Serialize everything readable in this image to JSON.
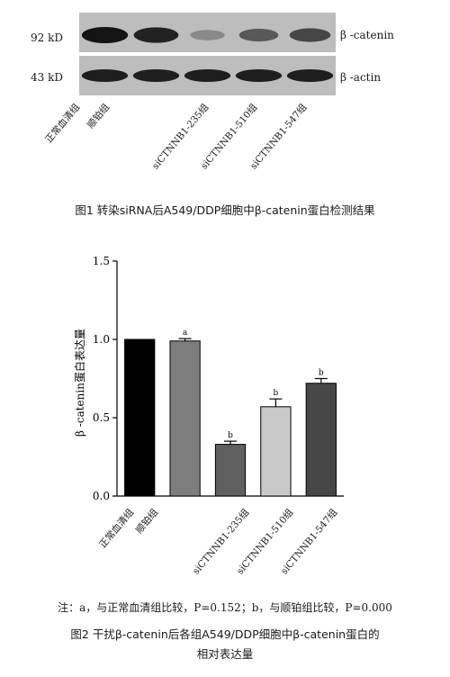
{
  "figure1": {
    "marker_top": "92 kD",
    "marker_bottom": "43 kD",
    "label_top": "β -catenin",
    "label_bottom": "β -actin",
    "lanes": [
      "正常血清组",
      "顺铂组",
      "siCTNNB1-235组",
      "siCTNNB1-510组",
      "siCTNNB1-547组"
    ],
    "band_intensity_top": [
      1.0,
      0.92,
      0.35,
      0.62,
      0.72
    ],
    "band_intensity_bottom": [
      1.0,
      1.0,
      1.0,
      1.0,
      1.0
    ],
    "caption": "图1   转染siRNA后A549/DDP细胞中β-catenin蛋白检测结果"
  },
  "chart_data": {
    "type": "bar",
    "categories": [
      "正常血清组",
      "顺铂组",
      "siCTNNB1-235组",
      "siCTNNB1-510组",
      "siCTNNB1-547组"
    ],
    "values": [
      1.0,
      0.99,
      0.33,
      0.57,
      0.72
    ],
    "errors": [
      0.0,
      0.015,
      0.02,
      0.05,
      0.03
    ],
    "annotations": [
      "",
      "a",
      "b",
      "b",
      "b"
    ],
    "bar_colors": [
      "#000000",
      "#7d7d7d",
      "#5f5f5f",
      "#c9c9c9",
      "#474747"
    ],
    "ylabel": "β -catenin蛋白表达量",
    "ylim": [
      0.0,
      1.5
    ],
    "yticks": [
      "0.0",
      "0.5",
      "1.0",
      "1.5"
    ],
    "grid": false
  },
  "footnote": "注：a，与正常血清组比较，P=0.152；b，与顺铂组比较，P=0.000",
  "figure2": {
    "caption_line1": "图2   干扰β-catenin后各组A549/DDP细胞中β-catenin蛋白的",
    "caption_line2": "相对表达量"
  }
}
